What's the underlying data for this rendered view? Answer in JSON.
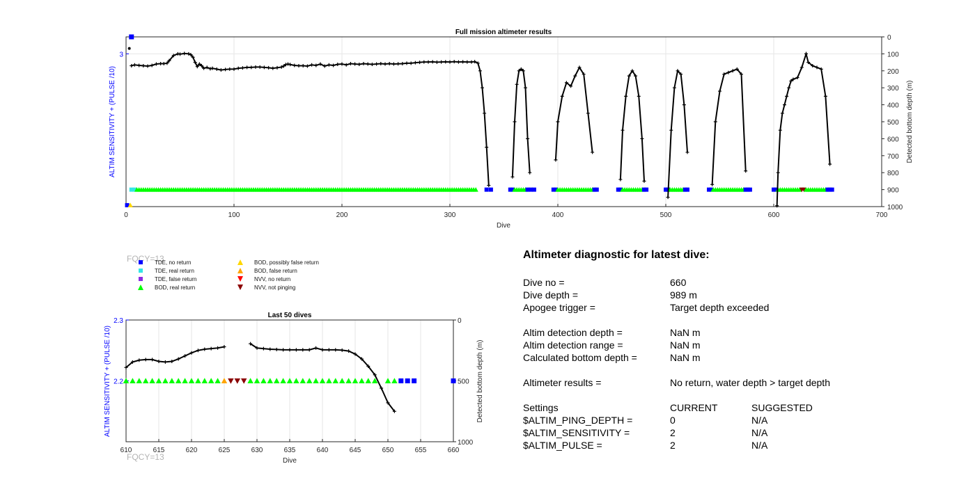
{
  "chart_data": [
    {
      "type": "scatter",
      "title": "Full mission altimeter results",
      "xlabel": "Dive",
      "ylabel_left": "ALTIM SENSITIVITY + (PULSE /10)",
      "ylabel_right": "Detected bottom depth (m)",
      "xlim": [
        0,
        700
      ],
      "xticks": [
        "0",
        "100",
        "200",
        "300",
        "400",
        "500",
        "600",
        "700"
      ],
      "ylim_right": [
        0,
        1000
      ],
      "yticks_right": [
        "0",
        "100",
        "200",
        "300",
        "400",
        "500",
        "600",
        "700",
        "800",
        "900",
        "1000"
      ],
      "yticks_left": [
        "3"
      ],
      "bottom_depth_segments": [
        {
          "x": [
            5,
            8,
            12,
            16,
            20,
            24,
            28,
            32,
            35,
            38,
            40,
            44,
            48,
            50,
            54,
            58,
            60,
            62,
            64,
            66,
            68,
            70,
            72,
            75,
            78,
            80,
            84,
            88,
            92,
            96,
            100,
            104,
            108,
            112,
            116,
            120,
            124,
            128,
            132,
            136,
            140,
            144,
            146,
            148,
            150,
            152,
            156,
            160,
            164,
            168,
            172,
            176,
            180,
            184,
            188,
            192,
            196,
            200,
            204,
            208,
            212,
            216,
            220,
            224,
            228,
            232,
            236,
            240,
            244,
            248,
            252,
            256,
            260,
            264,
            268,
            272,
            276,
            280,
            284,
            288,
            292,
            296,
            300,
            304,
            308,
            312,
            316,
            320,
            323,
            326,
            328,
            330,
            332,
            334,
            336
          ],
          "y": [
            170,
            165,
            168,
            170,
            172,
            168,
            160,
            158,
            158,
            155,
            140,
            110,
            100,
            102,
            98,
            100,
            105,
            120,
            150,
            175,
            160,
            170,
            185,
            180,
            188,
            185,
            190,
            195,
            192,
            190,
            190,
            185,
            183,
            180,
            180,
            178,
            178,
            180,
            182,
            185,
            182,
            178,
            172,
            163,
            160,
            163,
            168,
            170,
            170,
            172,
            165,
            168,
            160,
            172,
            165,
            168,
            162,
            160,
            165,
            158,
            160,
            162,
            158,
            160,
            162,
            160,
            158,
            160,
            158,
            160,
            159,
            158,
            155,
            155,
            152,
            150,
            148,
            148,
            147,
            149,
            148,
            147,
            148,
            146,
            148,
            147,
            148,
            148,
            146,
            155,
            200,
            300,
            450,
            650,
            875
          ]
        },
        {
          "x": [
            358,
            360,
            362,
            364,
            366,
            368,
            370,
            372,
            374
          ],
          "y": [
            825,
            500,
            280,
            200,
            190,
            200,
            300,
            600,
            800
          ]
        },
        {
          "x": [
            398,
            400,
            404,
            408,
            412,
            416,
            420,
            424,
            428,
            432
          ],
          "y": [
            725,
            500,
            350,
            270,
            290,
            230,
            180,
            220,
            450,
            680
          ]
        },
        {
          "x": [
            458,
            460,
            463,
            466,
            469,
            472,
            475,
            478,
            480
          ],
          "y": [
            840,
            550,
            350,
            230,
            200,
            230,
            350,
            600,
            850
          ]
        },
        {
          "x": [
            502,
            505,
            508,
            511,
            514,
            517,
            520
          ],
          "y": [
            945,
            550,
            300,
            200,
            220,
            400,
            680
          ]
        },
        {
          "x": [
            543,
            546,
            550,
            554,
            558,
            562,
            566,
            570,
            574
          ],
          "y": [
            870,
            500,
            320,
            220,
            210,
            200,
            190,
            220,
            790
          ]
        },
        {
          "x": [
            603,
            604,
            606,
            608,
            610,
            612,
            614,
            616,
            618,
            622,
            626,
            630,
            632,
            636,
            640,
            644,
            648,
            652
          ],
          "y": [
            995,
            800,
            550,
            450,
            400,
            350,
            300,
            260,
            250,
            240,
            180,
            100,
            150,
            170,
            180,
            190,
            350,
            750
          ]
        }
      ],
      "top_markers": [
        {
          "type": "square",
          "color": "#0000ff",
          "x": 5,
          "y": 0
        },
        {
          "type": "point",
          "color": "#000000",
          "x": 3,
          "y": 68
        }
      ],
      "bottom_markers": [
        {
          "type": "square",
          "color": "#0000ff",
          "x": 1,
          "y": 1000
        },
        {
          "type": "triangle-up",
          "color": "#ffd700",
          "x": 4,
          "y": 1000
        }
      ],
      "status_row": {
        "row_depth": 900,
        "runs": [
          {
            "series": "TDE, real return",
            "color": "#33e6e6",
            "shape": "square",
            "from": 5,
            "to": 8,
            "step": 3
          },
          {
            "series": "BOD, real return",
            "color": "#00ff00",
            "shape": "triangle-up",
            "from": 10,
            "to": 325,
            "step": 2
          },
          {
            "series": "TDE, no return",
            "color": "#0000ff",
            "shape": "square",
            "from": 334,
            "to": 338,
            "step": 4
          },
          {
            "series": "TDE, no return",
            "color": "#0000ff",
            "shape": "square",
            "from": 356,
            "to": 358,
            "step": 2
          },
          {
            "series": "BOD, real return",
            "color": "#00ff00",
            "shape": "triangle-up",
            "from": 360,
            "to": 370,
            "step": 2
          },
          {
            "series": "TDE, no return",
            "color": "#0000ff",
            "shape": "square",
            "from": 372,
            "to": 378,
            "step": 3
          },
          {
            "series": "TDE, no return",
            "color": "#0000ff",
            "shape": "square",
            "from": 396,
            "to": 398,
            "step": 2
          },
          {
            "series": "BOD, real return",
            "color": "#00ff00",
            "shape": "triangle-up",
            "from": 400,
            "to": 432,
            "step": 2
          },
          {
            "series": "TDE, no return",
            "color": "#0000ff",
            "shape": "square",
            "from": 434,
            "to": 436,
            "step": 2
          },
          {
            "series": "TDE, no return",
            "color": "#0000ff",
            "shape": "square",
            "from": 456,
            "to": 458,
            "step": 2
          },
          {
            "series": "BOD, real return",
            "color": "#00ff00",
            "shape": "triangle-up",
            "from": 460,
            "to": 478,
            "step": 2
          },
          {
            "series": "TDE, no return",
            "color": "#0000ff",
            "shape": "square",
            "from": 480,
            "to": 482,
            "step": 2
          },
          {
            "series": "TDE, no return",
            "color": "#0000ff",
            "shape": "square",
            "from": 500,
            "to": 502,
            "step": 2
          },
          {
            "series": "BOD, real return",
            "color": "#00ff00",
            "shape": "triangle-up",
            "from": 504,
            "to": 516,
            "step": 2
          },
          {
            "series": "TDE, no return",
            "color": "#0000ff",
            "shape": "square",
            "from": 518,
            "to": 520,
            "step": 2
          },
          {
            "series": "TDE, no return",
            "color": "#0000ff",
            "shape": "square",
            "from": 540,
            "to": 542,
            "step": 2
          },
          {
            "series": "BOD, real return",
            "color": "#00ff00",
            "shape": "triangle-up",
            "from": 544,
            "to": 572,
            "step": 2
          },
          {
            "series": "TDE, no return",
            "color": "#0000ff",
            "shape": "square",
            "from": 574,
            "to": 578,
            "step": 2
          },
          {
            "series": "TDE, no return",
            "color": "#0000ff",
            "shape": "square",
            "from": 600,
            "to": 602,
            "step": 2
          },
          {
            "series": "BOD, real return",
            "color": "#00ff00",
            "shape": "triangle-up",
            "from": 604,
            "to": 624,
            "step": 2
          },
          {
            "series": "NVV, not pinging",
            "color": "#8b0000",
            "shape": "triangle-down",
            "from": 626,
            "to": 628,
            "step": 2
          },
          {
            "series": "BOD, real return",
            "color": "#00ff00",
            "shape": "triangle-up",
            "from": 630,
            "to": 648,
            "step": 2
          },
          {
            "series": "TDE, no return",
            "color": "#0000ff",
            "shape": "square",
            "from": 650,
            "to": 654,
            "step": 2
          }
        ]
      }
    },
    {
      "type": "scatter",
      "title": "Last 50 dives",
      "xlabel": "Dive",
      "ylabel_left": "ALTIM SENSITIVITY + (PULSE /10)",
      "ylabel_right": "Detected bottom depth (m)",
      "xlim": [
        610,
        660
      ],
      "xticks": [
        "610",
        "615",
        "620",
        "625",
        "630",
        "635",
        "640",
        "645",
        "650",
        "655",
        "660"
      ],
      "ylim_right": [
        0,
        1000
      ],
      "yticks_right": [
        "0",
        "500",
        "1000"
      ],
      "yticks_left": [
        "2.3",
        "2.2"
      ],
      "bottom_depth_segments": [
        {
          "x": [
            610,
            611,
            612,
            613,
            614,
            615,
            616,
            617,
            618,
            619,
            620,
            621,
            622,
            623,
            624,
            625
          ],
          "y": [
            390,
            345,
            330,
            325,
            325,
            340,
            345,
            340,
            320,
            295,
            270,
            250,
            240,
            235,
            230,
            220
          ]
        },
        {
          "x": [
            629,
            630,
            631,
            632,
            633,
            634,
            635,
            636,
            637,
            638,
            639,
            640,
            641,
            642,
            643,
            644,
            645,
            646,
            647,
            648,
            649,
            650,
            651
          ],
          "y": [
            195,
            230,
            235,
            240,
            242,
            245,
            245,
            245,
            245,
            245,
            230,
            245,
            245,
            245,
            248,
            255,
            280,
            320,
            380,
            450,
            560,
            680,
            750
          ]
        }
      ],
      "status_markers": [
        {
          "series": "BOD, real return",
          "color": "#00ff00",
          "shape": "triangle-up",
          "x": [
            610,
            611,
            612,
            613,
            614,
            615,
            616,
            617,
            618,
            619,
            620,
            621,
            622,
            623,
            624,
            629,
            630,
            631,
            632,
            633,
            634,
            635,
            636,
            637,
            638,
            639,
            640,
            641,
            642,
            643,
            644,
            645,
            646,
            647,
            648,
            650,
            651
          ]
        },
        {
          "series": "BOD, false return",
          "color": "#ffa500",
          "shape": "triangle-up",
          "x": [
            625
          ]
        },
        {
          "series": "NVV, not pinging",
          "color": "#8b0000",
          "shape": "triangle-down",
          "x": [
            626,
            627,
            628
          ]
        },
        {
          "series": "TDE, no return",
          "color": "#0000ff",
          "shape": "square",
          "x": [
            652,
            653,
            654,
            660
          ]
        }
      ],
      "status_row_depth": 500
    }
  ],
  "fqcy_upper": "FQCY=13",
  "fqcy_lower": "FQCY=13",
  "legend": [
    {
      "label": "TDE, no return",
      "color": "#0000ff",
      "shape": "square"
    },
    {
      "label": "TDE, real return",
      "color": "#33e6e6",
      "shape": "square"
    },
    {
      "label": "TDE, false return",
      "color": "#8a2be2",
      "shape": "square"
    },
    {
      "label": "BOD, real return",
      "color": "#00ff00",
      "shape": "triangle-up"
    },
    {
      "label": "BOD, possibly false return",
      "color": "#ffd700",
      "shape": "triangle-up"
    },
    {
      "label": "BOD, false return",
      "color": "#ffa500",
      "shape": "triangle-up"
    },
    {
      "label": "NVV, no return",
      "color": "#ff0000",
      "shape": "triangle-down"
    },
    {
      "label": "NVV, not pinging",
      "color": "#8b0000",
      "shape": "triangle-down"
    }
  ],
  "diagnostic": {
    "title": "Altimeter diagnostic for latest dive:",
    "dive_no_label": "Dive no =",
    "dive_no_value": "660",
    "dive_depth_label": "Dive depth =",
    "dive_depth_value": "989 m",
    "apogee_label": "Apogee trigger =",
    "apogee_value": "Target depth exceeded",
    "detection_depth_label": "Altim detection depth =",
    "detection_depth_value": "NaN m",
    "detection_range_label": "Altim detection range =",
    "detection_range_value": "NaN m",
    "bottom_depth_label": "Calculated bottom depth =",
    "bottom_depth_value": "NaN m",
    "results_label": "Altimeter results =",
    "results_value": "No return, water depth > target depth",
    "settings_label": "Settings",
    "current_label": "CURRENT",
    "suggested_label": "SUGGESTED",
    "ping_depth_label": "$ALTIM_PING_DEPTH =",
    "ping_depth_current": "0",
    "ping_depth_suggested": "N/A",
    "sensitivity_label": "$ALTIM_SENSITIVITY =",
    "sensitivity_current": "2",
    "sensitivity_suggested": "N/A",
    "pulse_label": "$ALTIM_PULSE =",
    "pulse_current": "2",
    "pulse_suggested": "N/A"
  }
}
